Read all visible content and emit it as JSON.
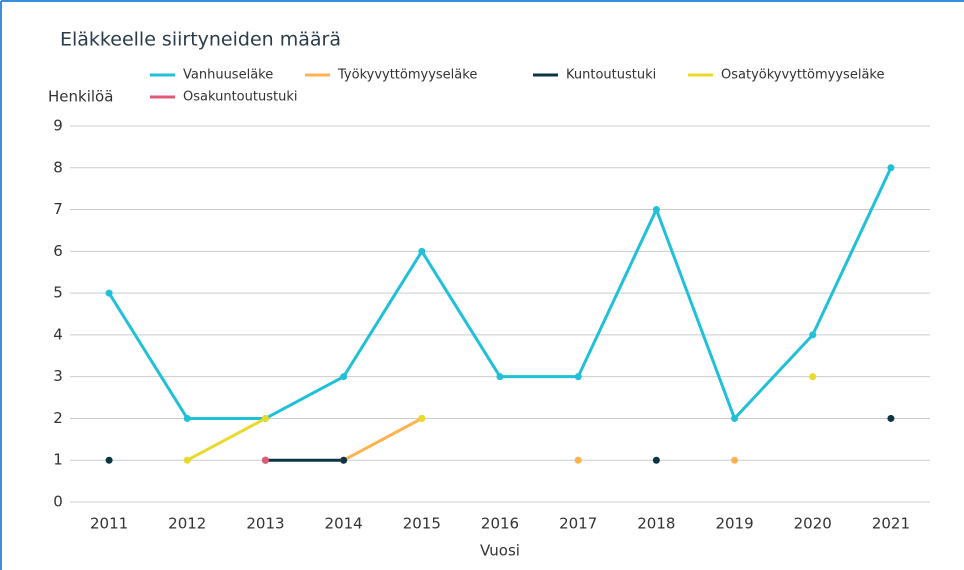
{
  "chart_data": {
    "type": "line",
    "title": "Eläkkeelle siirtyneiden määrä",
    "y_label": "Henkilöä",
    "x_label": "Vuosi",
    "categories": [
      "2011",
      "2012",
      "2013",
      "2014",
      "2015",
      "2016",
      "2017",
      "2018",
      "2019",
      "2020",
      "2021"
    ],
    "series": [
      {
        "name": "Vanhuuseläke",
        "color": "#1fc0d8",
        "values": [
          5,
          2,
          2,
          3,
          6,
          3,
          3,
          7,
          2,
          4,
          8
        ]
      },
      {
        "name": "Työkyvyttömyyseläke",
        "color": "#ffb24d",
        "values": [
          null,
          null,
          null,
          1,
          2,
          null,
          1,
          null,
          1,
          null,
          null
        ]
      },
      {
        "name": "Kuntoutustuki",
        "color": "#0b3545",
        "values": [
          1,
          null,
          1,
          1,
          null,
          null,
          null,
          1,
          null,
          null,
          2
        ]
      },
      {
        "name": "Osatyökyvyttömyyseläke",
        "color": "#e8d92a",
        "values": [
          null,
          1,
          2,
          null,
          2,
          null,
          null,
          null,
          null,
          3,
          null
        ]
      },
      {
        "name": "Osakuntoutustuki",
        "color": "#e05a78",
        "values": [
          null,
          null,
          1,
          null,
          null,
          null,
          null,
          null,
          null,
          null,
          null
        ]
      }
    ],
    "ylim": [
      0,
      9
    ],
    "yticks": [
      0,
      1,
      2,
      3,
      4,
      5,
      6,
      7,
      8,
      9
    ],
    "grid": true
  }
}
